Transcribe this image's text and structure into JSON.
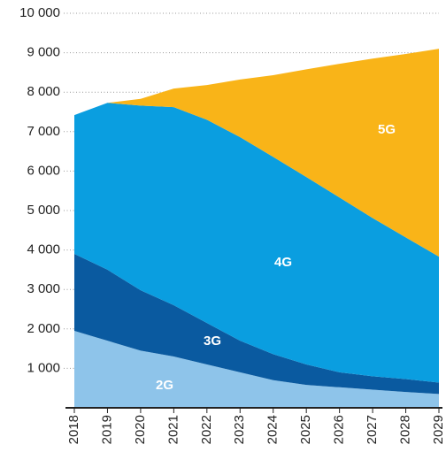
{
  "chart_data": {
    "type": "stacked-area",
    "categories": [
      "2018",
      "2019",
      "2020",
      "2021",
      "2022",
      "2023",
      "2024",
      "2025",
      "2026",
      "2027",
      "2028",
      "2029"
    ],
    "series": [
      {
        "name": "2G",
        "color": "#8ec4ea",
        "values": [
          1950,
          1700,
          1450,
          1300,
          1100,
          900,
          700,
          580,
          520,
          460,
          400,
          350
        ]
      },
      {
        "name": "3G",
        "color": "#0a5aa0",
        "values": [
          1950,
          1800,
          1530,
          1300,
          1050,
          800,
          660,
          520,
          380,
          340,
          330,
          290
        ]
      },
      {
        "name": "4G",
        "color": "#0a9ee0",
        "values": [
          3520,
          4230,
          4680,
          5020,
          5150,
          5160,
          5000,
          4750,
          4430,
          4010,
          3590,
          3190
        ]
      },
      {
        "name": "5G",
        "color": "#f9b418",
        "values": [
          0,
          0,
          170,
          470,
          880,
          1460,
          2070,
          2730,
          3390,
          4040,
          4650,
          5270
        ]
      }
    ],
    "ylim": [
      0,
      10000
    ],
    "yticks": [
      {
        "value": 1000,
        "label": "1 000"
      },
      {
        "value": 2000,
        "label": "2 000"
      },
      {
        "value": 3000,
        "label": "3 000"
      },
      {
        "value": 4000,
        "label": "4 000"
      },
      {
        "value": 5000,
        "label": "5 000"
      },
      {
        "value": 6000,
        "label": "6 000"
      },
      {
        "value": 7000,
        "label": "7 000"
      },
      {
        "value": 8000,
        "label": "8 000"
      },
      {
        "value": 9000,
        "label": "9 000"
      },
      {
        "value": 10000,
        "label": "10 000"
      }
    ],
    "grid": true
  }
}
